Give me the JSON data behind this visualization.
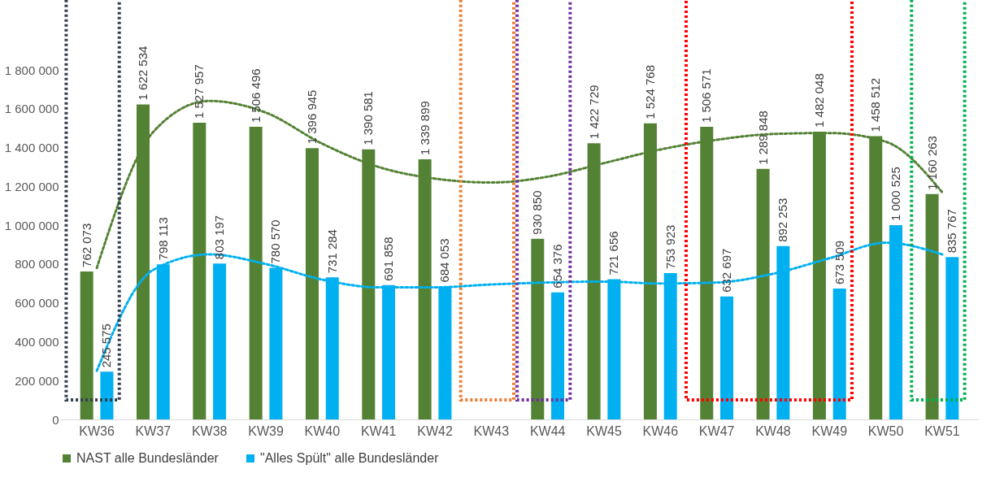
{
  "chart_data": {
    "type": "bar",
    "categories": [
      "KW36",
      "KW37",
      "KW38",
      "KW39",
      "KW40",
      "KW41",
      "KW42",
      "KW43",
      "KW44",
      "KW45",
      "KW46",
      "KW47",
      "KW48",
      "KW49",
      "KW50",
      "KW51"
    ],
    "series": [
      {
        "name": "NAST alle Bundesländer",
        "color": "#548235",
        "values": [
          762073,
          1622534,
          1527957,
          1506496,
          1396945,
          1390581,
          1339899,
          null,
          930850,
          1422729,
          1524768,
          1506571,
          1289848,
          1482048,
          1458512,
          1160263
        ],
        "value_labels": [
          "762 073",
          "1 622 534",
          "1 527 957",
          "1 506 496",
          "1 396 945",
          "1 390 581",
          "1 339 899",
          null,
          "930 850",
          "1 422 729",
          "1 524 768",
          "1 506 571",
          "1 289 848",
          "1 482 048",
          "1 458 512",
          "1 160 263"
        ]
      },
      {
        "name": "\"Alles Spült\" alle Bundesländer",
        "color": "#00b0f0",
        "values": [
          245575,
          798113,
          803197,
          780570,
          731284,
          691858,
          684053,
          null,
          654376,
          721656,
          753923,
          632697,
          892253,
          673509,
          1000525,
          835767
        ],
        "value_labels": [
          "245 575",
          "798 113",
          "803 197",
          "780 570",
          "731 284",
          "691 858",
          "684 053",
          null,
          "654 376",
          "721 656",
          "753 923",
          "632 697",
          "892 253",
          "673 509",
          "1 000 525",
          "835 767"
        ]
      },
      {
        "type": "line",
        "color": "#548235",
        "line_style": "dotted",
        "values": [
          780000,
          1480000,
          1640000,
          1580000,
          1420000,
          1300000,
          1240000,
          1220000,
          1250000,
          1320000,
          1390000,
          1440000,
          1470000,
          1475000,
          1430000,
          1170000
        ]
      },
      {
        "type": "line",
        "color": "#00b0f0",
        "line_style": "dotted",
        "values": [
          250000,
          770000,
          850000,
          800000,
          720000,
          680000,
          680000,
          695000,
          705000,
          710000,
          700000,
          705000,
          750000,
          830000,
          910000,
          850000
        ]
      }
    ],
    "ylim": [
      0,
      1800000
    ],
    "yticks": [
      {
        "value": 0,
        "label": "0"
      },
      {
        "value": 200000,
        "label": "200 000"
      },
      {
        "value": 400000,
        "label": "400 000"
      },
      {
        "value": 600000,
        "label": "600 000"
      },
      {
        "value": 800000,
        "label": "800 000"
      },
      {
        "value": 1000000,
        "label": "1 000 000"
      },
      {
        "value": 1200000,
        "label": "1 200 000"
      },
      {
        "value": 1400000,
        "label": "1 400 000"
      },
      {
        "value": 1600000,
        "label": "1 600 000"
      },
      {
        "value": 1800000,
        "label": "1 800 000"
      }
    ],
    "grid": false,
    "legend": "bottom"
  }
}
